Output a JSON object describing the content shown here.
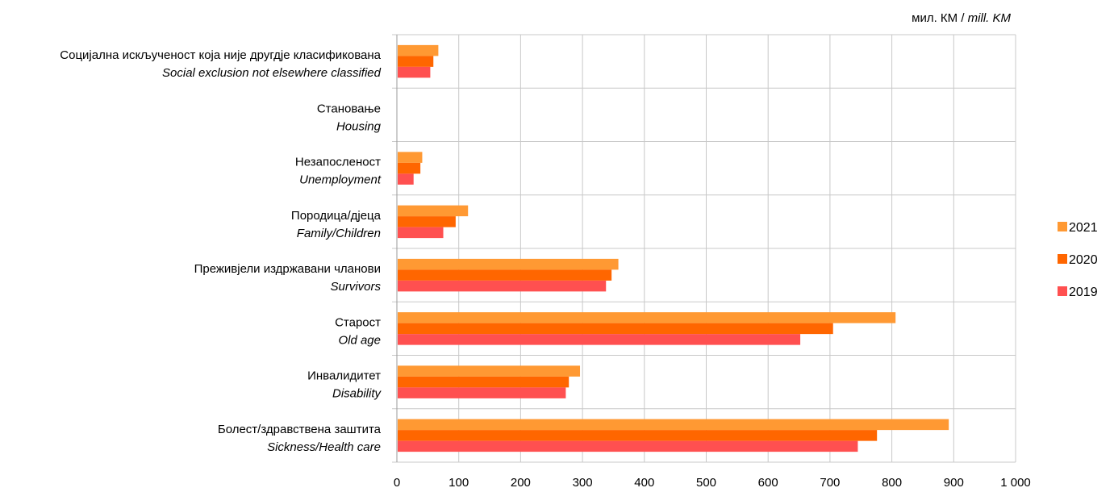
{
  "unit_label": {
    "local": "мил. КМ / ",
    "english": "mill. KM"
  },
  "chart_data": {
    "type": "bar",
    "orientation": "horizontal",
    "categories": [
      {
        "local": "Болест/здравствена заштита",
        "english": "Sickness/Health care"
      },
      {
        "local": "Инвалидитет",
        "english": "Disability"
      },
      {
        "local": "Старост",
        "english": "Old age"
      },
      {
        "local": "Преживјели издржавани чланови",
        "english": "Survivors"
      },
      {
        "local": "Породица/дјеца",
        "english": "Family/Children"
      },
      {
        "local": "Незапосленост",
        "english": "Unemployment"
      },
      {
        "local": "Становање",
        "english": "Housing"
      },
      {
        "local": "Социјална искљученост која није другдје класификована",
        "english": "Social exclusion not elsewhere classified"
      }
    ],
    "series": [
      {
        "name": "2021",
        "color": "#FF9933",
        "values": [
          892,
          296,
          806,
          358,
          115,
          41,
          0,
          67
        ]
      },
      {
        "name": "2020",
        "color": "#FF6600",
        "values": [
          776,
          278,
          705,
          347,
          95,
          38,
          0,
          59
        ]
      },
      {
        "name": "2019",
        "color": "#FF5050",
        "values": [
          745,
          273,
          652,
          338,
          75,
          27,
          0,
          54
        ]
      }
    ],
    "xlim": [
      0,
      1000
    ],
    "ticks": [
      "0",
      "100",
      "200",
      "300",
      "400",
      "500",
      "600",
      "700",
      "800",
      "900",
      "1 000"
    ],
    "grid": true,
    "legend_position": "right"
  }
}
